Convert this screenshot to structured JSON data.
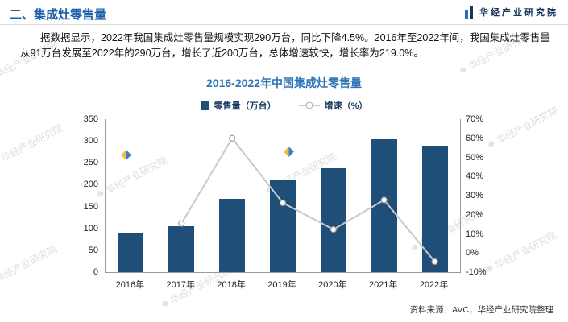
{
  "header": {
    "title": "二、集成灶零售量",
    "logo_text": "华经产业研究院"
  },
  "intro": {
    "text": "据数据显示，2022年我国集成灶零售量规模实现290万台，同比下降4.5%。2016年至2022年间，我国集成灶零售量从91万台发展至2022年的290万台，增长了近200万台，总体增速较快，增长率为219.0%。"
  },
  "chart_data": {
    "type": "bar",
    "title": "2016-2022年中国集成灶零售量",
    "categories": [
      "2016年",
      "2017年",
      "2018年",
      "2019年",
      "2020年",
      "2021年",
      "2022年"
    ],
    "series": [
      {
        "name": "零售量（万台）",
        "type": "bar",
        "axis": "left",
        "color": "#1f4e79",
        "values": [
          91,
          105,
          168,
          212,
          238,
          304,
          290
        ]
      },
      {
        "name": "增速（%）",
        "type": "line",
        "axis": "right",
        "color": "#c8c8c8",
        "values": [
          null,
          15.4,
          60.0,
          26.2,
          12.3,
          27.7,
          -4.5
        ]
      }
    ],
    "left_axis": {
      "min": 0,
      "max": 350,
      "step": 50,
      "labels": [
        "0",
        "50",
        "100",
        "150",
        "200",
        "250",
        "300",
        "350"
      ]
    },
    "right_axis": {
      "min": -10,
      "max": 70,
      "step": 10,
      "labels": [
        "-10%",
        "0%",
        "10%",
        "20%",
        "30%",
        "40%",
        "50%",
        "60%",
        "70%"
      ]
    },
    "grid": false,
    "legend_position": "top-center"
  },
  "source": "资料来源：AVC，华经产业研究院整理",
  "watermark": {
    "text": "华经产业研究院"
  },
  "brand_colors": {
    "diamond_yellow": "#f2b431",
    "diamond_blue": "#2d6fb7",
    "navy": "#16355f"
  }
}
